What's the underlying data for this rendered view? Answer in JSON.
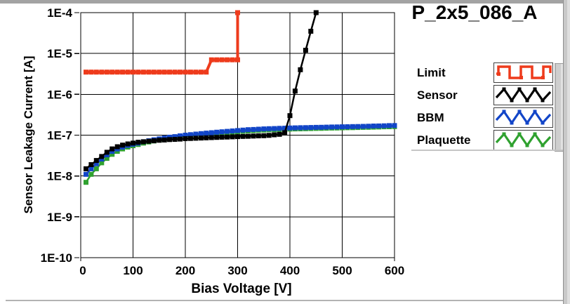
{
  "window": {
    "title": "P_2x5_086_A"
  },
  "colors": {
    "limit": "#ee3b1c",
    "sensor": "#000000",
    "bbm": "#1245c8",
    "plaquette": "#2fa12f",
    "grid": "#000000",
    "chrome_gray": "#a3a3a3"
  },
  "legend": {
    "items": [
      {
        "label": "Limit",
        "color": "#ee3b1c",
        "style": "square-wave"
      },
      {
        "label": "Sensor",
        "color": "#000000",
        "style": "triangle-wave"
      },
      {
        "label": "BBM",
        "color": "#1245c8",
        "style": "triangle-wave"
      },
      {
        "label": "Plaquette",
        "color": "#2fa12f",
        "style": "triangle-wave"
      }
    ]
  },
  "chart_data": {
    "type": "line",
    "title": "P_2x5_086_A",
    "xlabel": "Bias Voltage [V]",
    "ylabel": "Sensor Leakage Current [A]",
    "xlim": [
      0,
      600
    ],
    "x_ticks": [
      0,
      100,
      200,
      300,
      400,
      500,
      600
    ],
    "y_scale": "log",
    "ylim": [
      1e-10,
      0.0001
    ],
    "y_ticks": [
      {
        "label": "1E-4",
        "value": 0.0001
      },
      {
        "label": "1E-5",
        "value": 1e-05
      },
      {
        "label": "1E-6",
        "value": 1e-06
      },
      {
        "label": "1E-7",
        "value": 1e-07
      },
      {
        "label": "1E-8",
        "value": 1e-08
      },
      {
        "label": "1E-9",
        "value": 1e-09
      },
      {
        "label": "1E-10",
        "value": 1e-10
      }
    ],
    "grid": true,
    "legend_position": "right",
    "series": [
      {
        "name": "Limit",
        "color": "#ee3b1c",
        "marker": "square",
        "line_width": 4,
        "points": [
          [
            10,
            3.5e-06
          ],
          [
            20,
            3.5e-06
          ],
          [
            30,
            3.5e-06
          ],
          [
            40,
            3.5e-06
          ],
          [
            50,
            3.5e-06
          ],
          [
            60,
            3.5e-06
          ],
          [
            70,
            3.5e-06
          ],
          [
            80,
            3.5e-06
          ],
          [
            90,
            3.5e-06
          ],
          [
            100,
            3.5e-06
          ],
          [
            110,
            3.5e-06
          ],
          [
            120,
            3.5e-06
          ],
          [
            130,
            3.5e-06
          ],
          [
            140,
            3.5e-06
          ],
          [
            150,
            3.5e-06
          ],
          [
            160,
            3.5e-06
          ],
          [
            170,
            3.5e-06
          ],
          [
            180,
            3.5e-06
          ],
          [
            190,
            3.5e-06
          ],
          [
            200,
            3.5e-06
          ],
          [
            210,
            3.5e-06
          ],
          [
            220,
            3.5e-06
          ],
          [
            230,
            3.5e-06
          ],
          [
            240,
            3.5e-06
          ],
          [
            250,
            7e-06
          ],
          [
            260,
            7e-06
          ],
          [
            270,
            7e-06
          ],
          [
            280,
            7e-06
          ],
          [
            290,
            7e-06
          ],
          [
            300,
            7e-06
          ],
          [
            300,
            0.0001
          ]
        ]
      },
      {
        "name": "Sensor",
        "color": "#000000",
        "marker": "square",
        "line_width": 2.5,
        "points": [
          [
            10,
            1.5e-08
          ],
          [
            20,
            1.9e-08
          ],
          [
            30,
            2.4e-08
          ],
          [
            40,
            3e-08
          ],
          [
            50,
            3.8e-08
          ],
          [
            60,
            4.6e-08
          ],
          [
            70,
            5.2e-08
          ],
          [
            80,
            5.7e-08
          ],
          [
            90,
            6.1e-08
          ],
          [
            100,
            6.4e-08
          ],
          [
            110,
            6.7e-08
          ],
          [
            120,
            6.9e-08
          ],
          [
            130,
            7.1e-08
          ],
          [
            140,
            7.3e-08
          ],
          [
            150,
            7.5e-08
          ],
          [
            160,
            7.6e-08
          ],
          [
            170,
            7.8e-08
          ],
          [
            180,
            7.9e-08
          ],
          [
            190,
            8e-08
          ],
          [
            200,
            8.2e-08
          ],
          [
            210,
            8.3e-08
          ],
          [
            220,
            8.4e-08
          ],
          [
            230,
            8.5e-08
          ],
          [
            240,
            8.6e-08
          ],
          [
            250,
            8.7e-08
          ],
          [
            260,
            8.8e-08
          ],
          [
            270,
            8.9e-08
          ],
          [
            280,
            9e-08
          ],
          [
            290,
            9.1e-08
          ],
          [
            300,
            9.2e-08
          ],
          [
            310,
            9.3e-08
          ],
          [
            320,
            9.4e-08
          ],
          [
            330,
            9.5e-08
          ],
          [
            340,
            9.6e-08
          ],
          [
            350,
            9.7e-08
          ],
          [
            360,
            9.9e-08
          ],
          [
            370,
            1.02e-07
          ],
          [
            380,
            1.05e-07
          ],
          [
            390,
            1.15e-07
          ],
          [
            400,
            3e-07
          ],
          [
            410,
            1.2e-06
          ],
          [
            420,
            4e-06
          ],
          [
            430,
            1.2e-05
          ],
          [
            440,
            3.5e-05
          ],
          [
            450,
            0.0001
          ]
        ]
      },
      {
        "name": "BBM",
        "color": "#1245c8",
        "marker": "square",
        "line_width": 2.5,
        "points": [
          [
            10,
            1.1e-08
          ],
          [
            20,
            1.5e-08
          ],
          [
            30,
            2e-08
          ],
          [
            40,
            2.6e-08
          ],
          [
            50,
            3.3e-08
          ],
          [
            60,
            4e-08
          ],
          [
            70,
            4.6e-08
          ],
          [
            80,
            5.1e-08
          ],
          [
            90,
            5.6e-08
          ],
          [
            100,
            6e-08
          ],
          [
            110,
            6.4e-08
          ],
          [
            120,
            6.9e-08
          ],
          [
            130,
            7.3e-08
          ],
          [
            140,
            7.7e-08
          ],
          [
            150,
            8.1e-08
          ],
          [
            160,
            8.5e-08
          ],
          [
            170,
            8.9e-08
          ],
          [
            180,
            9.2e-08
          ],
          [
            190,
            9.6e-08
          ],
          [
            200,
            1e-07
          ],
          [
            210,
            1.03e-07
          ],
          [
            220,
            1.06e-07
          ],
          [
            230,
            1.09e-07
          ],
          [
            240,
            1.12e-07
          ],
          [
            250,
            1.15e-07
          ],
          [
            260,
            1.18e-07
          ],
          [
            270,
            1.21e-07
          ],
          [
            280,
            1.24e-07
          ],
          [
            290,
            1.27e-07
          ],
          [
            300,
            1.3e-07
          ],
          [
            310,
            1.33e-07
          ],
          [
            320,
            1.36e-07
          ],
          [
            330,
            1.38e-07
          ],
          [
            340,
            1.4e-07
          ],
          [
            350,
            1.42e-07
          ],
          [
            360,
            1.44e-07
          ],
          [
            370,
            1.45e-07
          ],
          [
            380,
            1.47e-07
          ],
          [
            390,
            1.48e-07
          ],
          [
            400,
            1.5e-07
          ],
          [
            410,
            1.51e-07
          ],
          [
            420,
            1.52e-07
          ],
          [
            430,
            1.53e-07
          ],
          [
            440,
            1.54e-07
          ],
          [
            450,
            1.55e-07
          ],
          [
            460,
            1.56e-07
          ],
          [
            470,
            1.57e-07
          ],
          [
            480,
            1.58e-07
          ],
          [
            490,
            1.59e-07
          ],
          [
            500,
            1.6e-07
          ],
          [
            510,
            1.61e-07
          ],
          [
            520,
            1.62e-07
          ],
          [
            530,
            1.63e-07
          ],
          [
            540,
            1.64e-07
          ],
          [
            550,
            1.65e-07
          ],
          [
            560,
            1.67e-07
          ],
          [
            570,
            1.68e-07
          ],
          [
            580,
            1.69e-07
          ],
          [
            590,
            1.71e-07
          ],
          [
            600,
            1.72e-07
          ]
        ]
      },
      {
        "name": "Plaquette",
        "color": "#2fa12f",
        "marker": "square",
        "line_width": 2.5,
        "points": [
          [
            10,
            7e-09
          ],
          [
            20,
            1.1e-08
          ],
          [
            30,
            1.5e-08
          ],
          [
            40,
            2.1e-08
          ],
          [
            50,
            2.7e-08
          ],
          [
            60,
            3.4e-08
          ],
          [
            70,
            4e-08
          ],
          [
            80,
            4.6e-08
          ],
          [
            90,
            5.1e-08
          ],
          [
            100,
            5.5e-08
          ],
          [
            110,
            5.9e-08
          ],
          [
            120,
            6.4e-08
          ],
          [
            130,
            6.8e-08
          ],
          [
            140,
            7.2e-08
          ],
          [
            150,
            7.6e-08
          ],
          [
            160,
            8e-08
          ],
          [
            170,
            8.4e-08
          ],
          [
            180,
            8.7e-08
          ],
          [
            190,
            9.1e-08
          ],
          [
            200,
            9.4e-08
          ],
          [
            210,
            9.7e-08
          ],
          [
            220,
            1e-07
          ],
          [
            230,
            1.03e-07
          ],
          [
            240,
            1.06e-07
          ],
          [
            250,
            1.08e-07
          ],
          [
            260,
            1.11e-07
          ],
          [
            270,
            1.14e-07
          ],
          [
            280,
            1.17e-07
          ],
          [
            290,
            1.19e-07
          ],
          [
            300,
            1.22e-07
          ],
          [
            310,
            1.25e-07
          ],
          [
            320,
            1.27e-07
          ],
          [
            330,
            1.29e-07
          ],
          [
            340,
            1.31e-07
          ],
          [
            350,
            1.33e-07
          ],
          [
            360,
            1.35e-07
          ],
          [
            370,
            1.36e-07
          ],
          [
            380,
            1.38e-07
          ],
          [
            390,
            1.39e-07
          ],
          [
            400,
            1.41e-07
          ],
          [
            410,
            1.42e-07
          ],
          [
            420,
            1.43e-07
          ],
          [
            430,
            1.44e-07
          ],
          [
            440,
            1.45e-07
          ],
          [
            450,
            1.46e-07
          ],
          [
            460,
            1.47e-07
          ],
          [
            470,
            1.48e-07
          ],
          [
            480,
            1.49e-07
          ],
          [
            490,
            1.5e-07
          ],
          [
            500,
            1.51e-07
          ],
          [
            510,
            1.52e-07
          ],
          [
            520,
            1.53e-07
          ],
          [
            530,
            1.54e-07
          ],
          [
            540,
            1.55e-07
          ],
          [
            550,
            1.56e-07
          ],
          [
            560,
            1.57e-07
          ],
          [
            570,
            1.58e-07
          ],
          [
            580,
            1.6e-07
          ],
          [
            590,
            1.61e-07
          ],
          [
            600,
            1.62e-07
          ]
        ]
      }
    ]
  }
}
